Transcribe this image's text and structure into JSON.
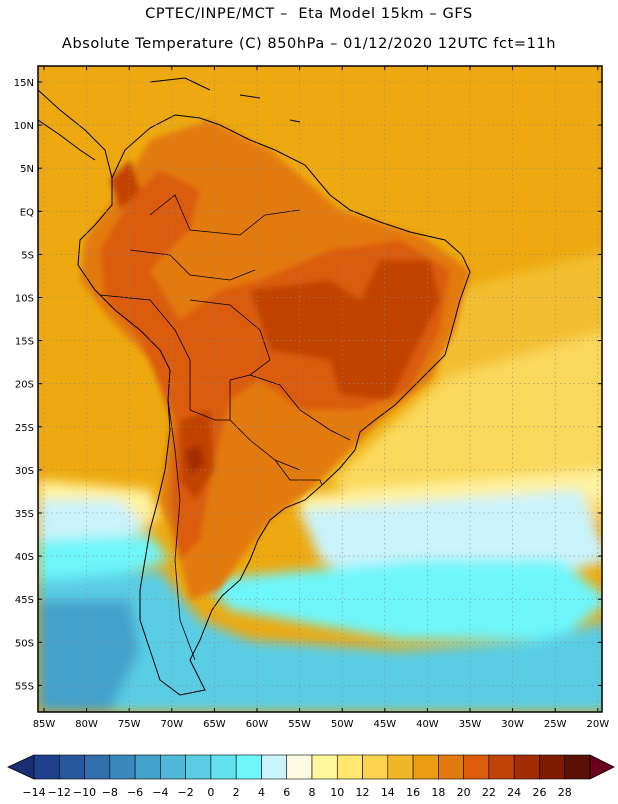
{
  "header": {
    "line1": "CPTEC/INPE/MCT –  Eta Model 15km – GFS",
    "line2": "Absolute Temperature (C) 850hPa – 01/12/2020 12UTC fct=11h"
  },
  "lat_labels": [
    "15N",
    "10N",
    "5N",
    "EQ",
    "5S",
    "10S",
    "15S",
    "20S",
    "25S",
    "30S",
    "35S",
    "40S",
    "45S",
    "50S",
    "55S"
  ],
  "lon_labels": [
    "85W",
    "80W",
    "75W",
    "70W",
    "65W",
    "60W",
    "55W",
    "50W",
    "45W",
    "40W",
    "35W",
    "30W",
    "25W",
    "20W"
  ],
  "colorbar": {
    "labels": [
      "-14",
      "-12",
      "-10",
      "-8",
      "-6",
      "-4",
      "-2",
      "0",
      "2",
      "4",
      "6",
      "8",
      "10",
      "12",
      "14",
      "16",
      "18",
      "20",
      "22",
      "24",
      "26",
      "28"
    ],
    "colors": [
      "#1f3f8f",
      "#28579d",
      "#3170ad",
      "#3a88bd",
      "#44a2cb",
      "#4fb8d8",
      "#5acde5",
      "#62e2ef",
      "#6ef6fb",
      "#caf3fb",
      "#fffbe3",
      "#fff79b",
      "#ffe770",
      "#fbd24e",
      "#f2b629",
      "#eb9d12",
      "#e37a10",
      "#dc5c0a",
      "#c24306",
      "#a22d04",
      "#7d1c03",
      "#5b1004"
    ],
    "min_color": "#1a2f73",
    "max_color": "#6b0020"
  },
  "map_colors": {
    "ocean_warm": "#eda90f",
    "ocean_mid": "#f3bf33",
    "ocean_cool": "#fbd95c",
    "ocean_pale": "#fff2a0",
    "cold_light": "#caf3fb",
    "cold_cyan": "#6ef6fb",
    "cold_blue": "#5acde5",
    "cold_deep": "#44a2cb",
    "land_warm": "#e37a10",
    "land_hot": "#dc5c0a",
    "land_very_hot": "#c24306",
    "land_extreme": "#a22d04"
  }
}
